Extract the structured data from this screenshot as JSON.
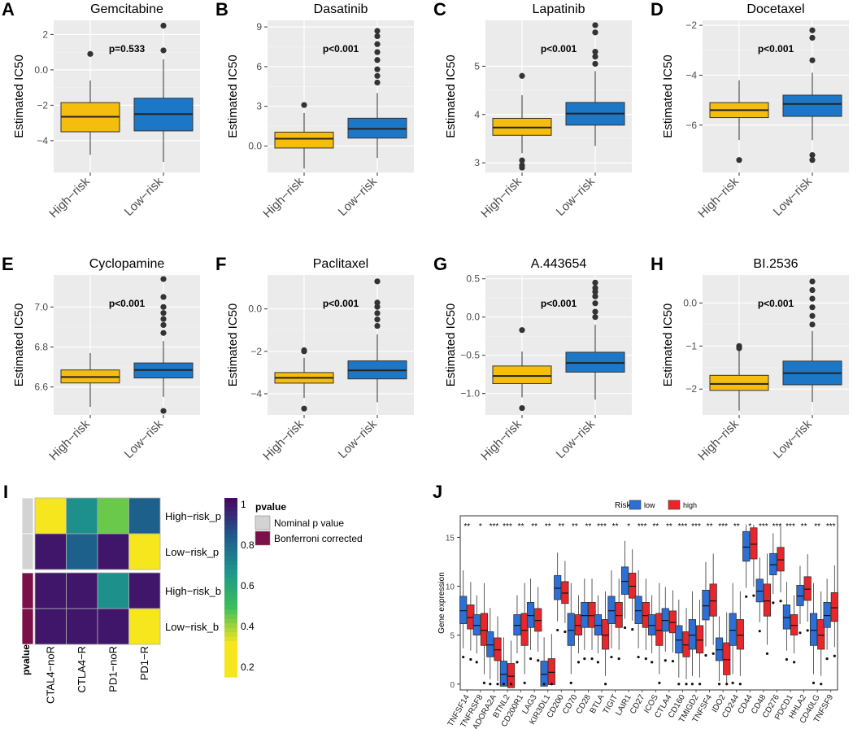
{
  "boxplot_panels": {
    "title_note": "Estimated IC50 by risk group",
    "ylabel": "Estimated IC50",
    "groups": [
      "High−risk",
      "Low−risk"
    ],
    "colors": {
      "High-risk": "#f5be0f",
      "Low-risk": "#1c78c6",
      "panel_bg": "#ebebeb",
      "grid": "#ffffff"
    }
  },
  "chart_data": [
    {
      "letter": "A",
      "type": "boxplot",
      "title": "Gemcitabine",
      "pvalue": "p=0.533",
      "yticks": [
        2,
        0,
        -2,
        -4
      ],
      "ylim": [
        -5.8,
        2.8
      ],
      "series": [
        {
          "name": "High−risk",
          "whisker_low": -4.8,
          "q1": -3.5,
          "median": -2.65,
          "q3": -1.85,
          "whisker_high": -0.6,
          "outliers": [
            0.9
          ]
        },
        {
          "name": "Low−risk",
          "whisker_low": -5.2,
          "q1": -3.45,
          "median": -2.5,
          "q3": -1.6,
          "whisker_high": 0.6,
          "outliers": [
            1.1,
            2.5
          ]
        }
      ]
    },
    {
      "letter": "B",
      "type": "boxplot",
      "title": "Dasatinib",
      "pvalue": "p<0.001",
      "yticks": [
        9,
        6,
        3,
        0
      ],
      "ylim": [
        -2.0,
        9.5
      ],
      "series": [
        {
          "name": "High−risk",
          "whisker_low": -1.7,
          "q1": -0.15,
          "median": 0.55,
          "q3": 1.05,
          "whisker_high": 2.5,
          "outliers": [
            3.1
          ]
        },
        {
          "name": "Low−risk",
          "whisker_low": -0.9,
          "q1": 0.6,
          "median": 1.3,
          "q3": 2.1,
          "whisker_high": 4.0,
          "outliers": [
            4.8,
            5.3,
            5.8,
            6.5,
            7.1,
            7.7,
            8.3,
            8.7
          ]
        }
      ]
    },
    {
      "letter": "C",
      "type": "boxplot",
      "title": "Lapatinib",
      "pvalue": "p<0.001",
      "yticks": [
        5,
        4,
        3
      ],
      "ylim": [
        2.8,
        5.95
      ],
      "series": [
        {
          "name": "High−risk",
          "whisker_low": 3.2,
          "q1": 3.57,
          "median": 3.73,
          "q3": 3.92,
          "whisker_high": 4.4,
          "outliers": [
            4.8,
            3.05,
            2.95,
            2.9
          ]
        },
        {
          "name": "Low−risk",
          "whisker_low": 3.35,
          "q1": 3.78,
          "median": 4.02,
          "q3": 4.25,
          "whisker_high": 4.9,
          "outliers": [
            5.05,
            5.2,
            5.3,
            5.7,
            5.85
          ]
        }
      ]
    },
    {
      "letter": "D",
      "type": "boxplot",
      "title": "Docetaxel",
      "pvalue": "p<0.001",
      "yticks": [
        -2,
        -4,
        -6
      ],
      "ylim": [
        -7.9,
        -1.8
      ],
      "series": [
        {
          "name": "High−risk",
          "whisker_low": -6.6,
          "q1": -5.7,
          "median": -5.4,
          "q3": -5.1,
          "whisker_high": -4.2,
          "outliers": [
            -7.4
          ]
        },
        {
          "name": "Low−risk",
          "whisker_low": -6.6,
          "q1": -5.65,
          "median": -5.15,
          "q3": -4.8,
          "whisker_high": -3.9,
          "outliers": [
            -3.4,
            -2.5,
            -2.2,
            -7.2,
            -7.4
          ]
        }
      ]
    },
    {
      "letter": "E",
      "type": "boxplot",
      "title": "Cyclopamine",
      "pvalue": "p<0.001",
      "yticks": [
        7.0,
        6.8,
        6.6
      ],
      "ylim": [
        6.46,
        7.16
      ],
      "series": [
        {
          "name": "High−risk",
          "whisker_low": 6.5,
          "q1": 6.62,
          "median": 6.65,
          "q3": 6.685,
          "whisker_high": 6.77,
          "outliers": []
        },
        {
          "name": "Low−risk",
          "whisker_low": 6.55,
          "q1": 6.645,
          "median": 6.685,
          "q3": 6.72,
          "whisker_high": 6.83,
          "outliers": [
            6.87,
            6.91,
            6.94,
            6.97,
            7.0,
            7.05,
            7.14,
            6.48
          ]
        }
      ]
    },
    {
      "letter": "F",
      "type": "boxplot",
      "title": "Paclitaxel",
      "pvalue": "p<0.001",
      "yticks": [
        0,
        -2,
        -4
      ],
      "ylim": [
        -5.0,
        1.6
      ],
      "series": [
        {
          "name": "High−risk",
          "whisker_low": -4.2,
          "q1": -3.5,
          "median": -3.25,
          "q3": -3.0,
          "whisker_high": -2.3,
          "outliers": [
            -2.0,
            -1.95,
            -4.7
          ]
        },
        {
          "name": "Low−risk",
          "whisker_low": -4.4,
          "q1": -3.3,
          "median": -2.9,
          "q3": -2.45,
          "whisker_high": -1.2,
          "outliers": [
            -0.8,
            -0.5,
            -0.2,
            0.1,
            0.3,
            1.3
          ]
        }
      ]
    },
    {
      "letter": "G",
      "type": "boxplot",
      "title": "A.443654",
      "pvalue": "p<0.001",
      "yticks": [
        0.5,
        0.0,
        -0.5,
        -1.0
      ],
      "ylim": [
        -1.28,
        0.55
      ],
      "series": [
        {
          "name": "High−risk",
          "whisker_low": -1.05,
          "q1": -0.87,
          "median": -0.77,
          "q3": -0.64,
          "whisker_high": -0.45,
          "outliers": [
            -0.17,
            -1.19
          ]
        },
        {
          "name": "Low−risk",
          "whisker_low": -1.08,
          "q1": -0.72,
          "median": -0.6,
          "q3": -0.46,
          "whisker_high": -0.1,
          "outliers": [
            0.0,
            0.07,
            0.18,
            0.27,
            0.33,
            0.38,
            0.45
          ]
        }
      ]
    },
    {
      "letter": "H",
      "type": "boxplot",
      "title": "BI.2536",
      "pvalue": "p<0.001",
      "yticks": [
        0,
        -1,
        -2
      ],
      "ylim": [
        -2.6,
        0.65
      ],
      "series": [
        {
          "name": "High−risk",
          "whisker_low": -2.5,
          "q1": -2.03,
          "median": -1.88,
          "q3": -1.68,
          "whisker_high": -1.1,
          "outliers": [
            -1.0,
            -1.05
          ]
        },
        {
          "name": "Low−risk",
          "whisker_low": -2.3,
          "q1": -1.9,
          "median": -1.63,
          "q3": -1.35,
          "whisker_high": -0.65,
          "outliers": [
            -0.5,
            -0.3,
            -0.1,
            0.1,
            0.3,
            0.5
          ]
        }
      ]
    },
    {
      "letter": "I",
      "type": "heatmap",
      "columns": [
        "CTAL4−noR",
        "CTLA4−R",
        "PD1−noR",
        "PD1−R"
      ],
      "rows": [
        "High−risk_p",
        "Low−risk_p",
        "High−risk_b",
        "Low−risk_b"
      ],
      "annotation_label": "pvalue",
      "row_annotation": [
        "Nominal p value",
        "Nominal p value",
        "Bonferroni corrected",
        "Bonferroni corrected"
      ],
      "values": [
        [
          0.08,
          0.62,
          0.35,
          0.78
        ],
        [
          0.97,
          0.78,
          0.97,
          0.08
        ],
        [
          0.97,
          0.97,
          0.62,
          0.97
        ],
        [
          0.97,
          0.97,
          0.97,
          0.08
        ]
      ],
      "colorbar_ticks": [
        1,
        0.8,
        0.6,
        0.4,
        0.2
      ],
      "legend_title": "pvalue",
      "legend_items": [
        {
          "label": "Nominal p value",
          "color": "#d3d3d3"
        },
        {
          "label": "Bonferroni corrected",
          "color": "#7b0f4a"
        }
      ]
    },
    {
      "letter": "J",
      "type": "boxplot",
      "ylabel": "Gene expression",
      "legend_title": "Risk",
      "legend": [
        {
          "label": "low",
          "color": "#2c6fd6"
        },
        {
          "label": "high",
          "color": "#e8262c"
        }
      ],
      "yticks": [
        15,
        10,
        5,
        0
      ],
      "ylim": [
        -0.6,
        17.2
      ],
      "genes": [
        "TNFSF14",
        "TNFRSF8",
        "ADORA2A",
        "BTNL2",
        "CD200R1",
        "LAG3",
        "KIR3DL1",
        "CD200",
        "CD70",
        "CD28",
        "BTLA",
        "TIGIT",
        "LAIR1",
        "CD27",
        "ICOS",
        "CTLA4",
        "CD160",
        "TMIGD2",
        "TNFSF4",
        "IDO2",
        "CD244",
        "CD44",
        "CD48",
        "CD276",
        "PDCD1",
        "HHLA2",
        "CD40LG",
        "TNFSF9"
      ],
      "significance": [
        "**",
        "*",
        "***",
        "***",
        "**",
        "**",
        "**",
        "**",
        "**",
        "**",
        "***",
        "**",
        "*",
        "***",
        "**",
        "**",
        "***",
        "***",
        "**",
        "***",
        "**",
        "*",
        "***",
        "***",
        "***",
        "**",
        "**",
        "***"
      ],
      "low_medians": [
        7.5,
        6,
        4,
        1,
        6,
        7,
        1,
        9.8,
        5.5,
        7,
        6,
        7.5,
        10.5,
        7.5,
        6,
        6.5,
        4.5,
        5,
        8,
        3.5,
        5.5,
        14,
        9.5,
        12.2,
        6.8,
        9,
        5.5,
        7
      ],
      "high_medians": [
        6.8,
        5.5,
        3.5,
        0.8,
        5.5,
        6.5,
        1.2,
        9.3,
        6,
        7,
        5,
        7,
        10,
        7,
        5.5,
        6.3,
        4,
        4.5,
        8.5,
        2.5,
        5,
        14.3,
        8.5,
        12.7,
        6,
        9.7,
        5,
        7.8
      ]
    }
  ]
}
